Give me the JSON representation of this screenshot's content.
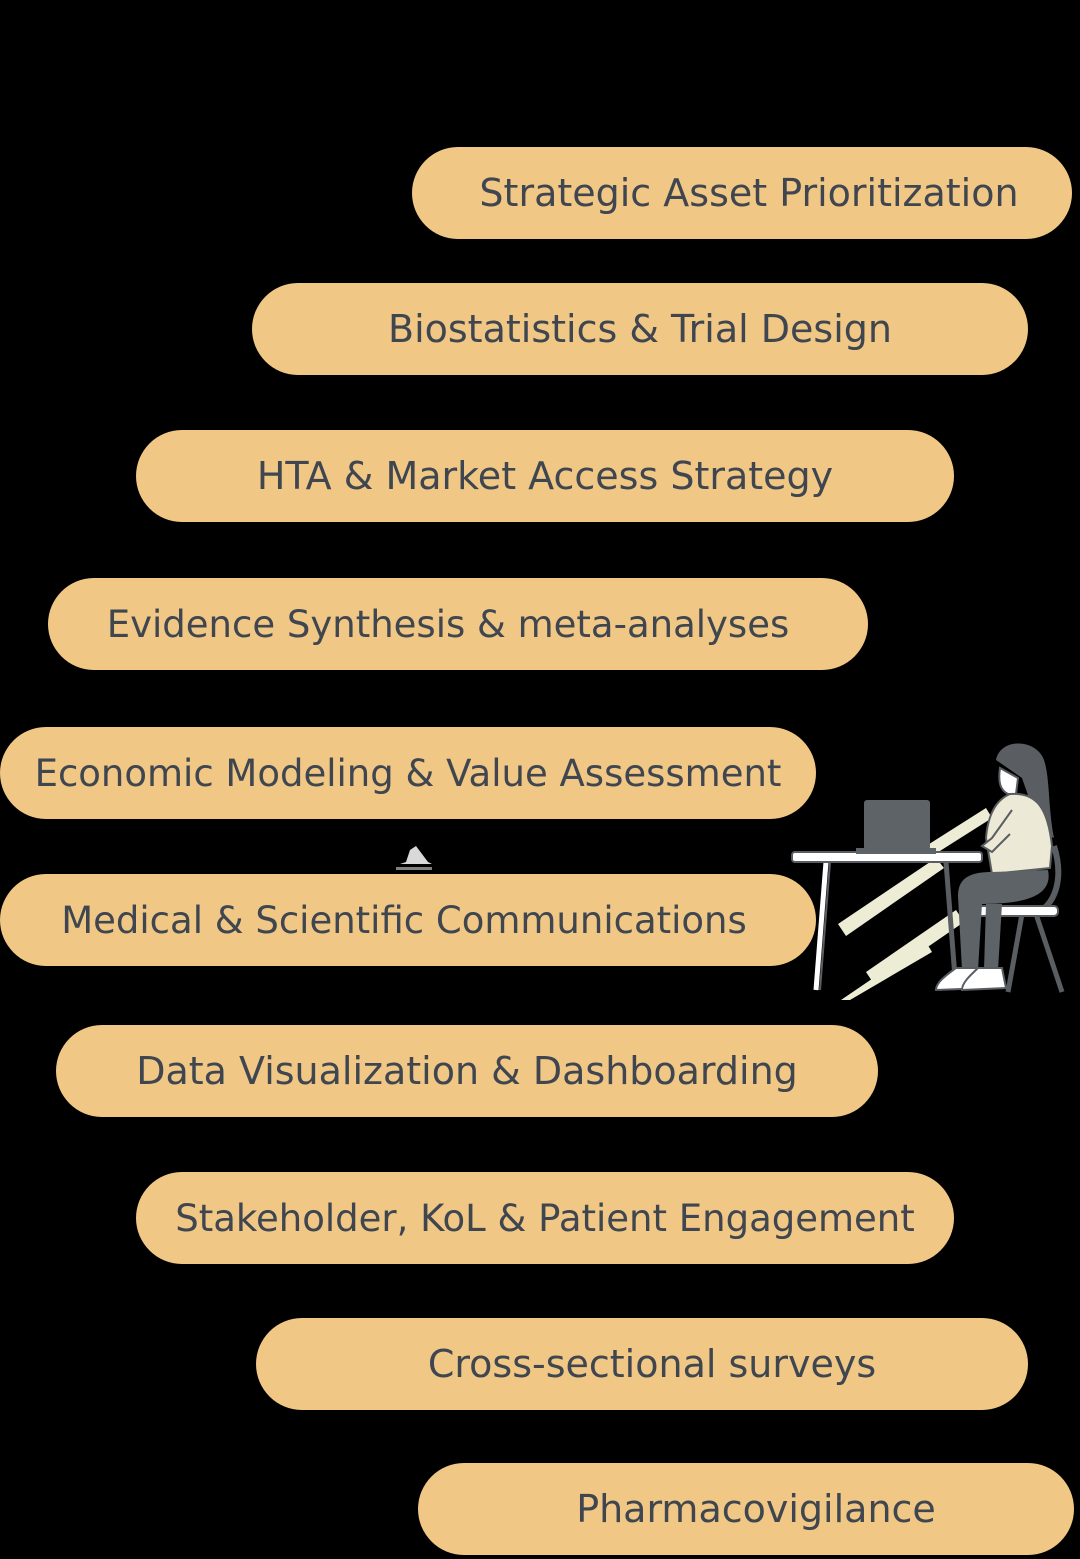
{
  "services": [
    "Strategic Asset Prioritization",
    "Biostatistics & Trial Design",
    "HTA & Market Access Strategy",
    "Evidence Synthesis & meta-analyses",
    "Economic Modeling & Value Assessment",
    "Medical & Scientific Communications",
    "Data Visualization & Dashboarding",
    "Stakeholder, KoL & Patient Engagement",
    "Cross-sectional surveys",
    "Pharmacovigilance"
  ],
  "colors": {
    "background": "#000000",
    "pill": "#F0C784",
    "text": "#3F4650"
  },
  "icons": {
    "illustration": "woman-at-laptop-desk-icon"
  }
}
